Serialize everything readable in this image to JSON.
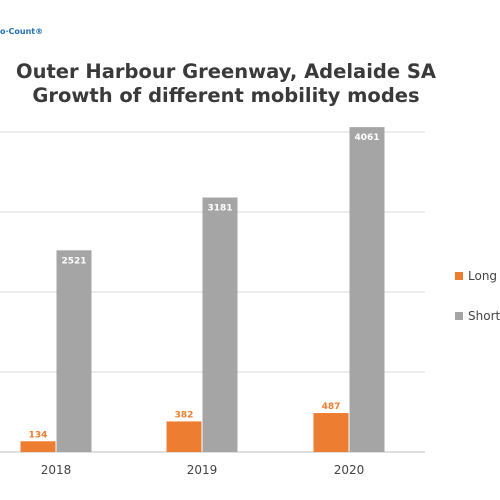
{
  "logo": {
    "text": "o·Count®"
  },
  "title_lines": [
    "Outer Harbour Greenway, Adelaide SA",
    "Growth of different mobility modes"
  ],
  "colors": {
    "long": "#ed7d31",
    "short": "#a5a5a5",
    "grid": "#d9d9d9",
    "axis": "#bfbfbf",
    "long_label": "#ed7d31",
    "short_label": "#ffffff"
  },
  "chart_data": {
    "type": "bar",
    "title": "Outer Harbour Greenway, Adelaide SA Growth of different mobility modes",
    "categories": [
      "2018",
      "2019",
      "2020"
    ],
    "series": [
      {
        "name": "Long (",
        "values": [
          134,
          382,
          487
        ]
      },
      {
        "name": "Short",
        "values": [
          2521,
          3181,
          4061
        ]
      }
    ],
    "ylim": [
      0,
      4000
    ],
    "grid": true,
    "legend": "right"
  }
}
